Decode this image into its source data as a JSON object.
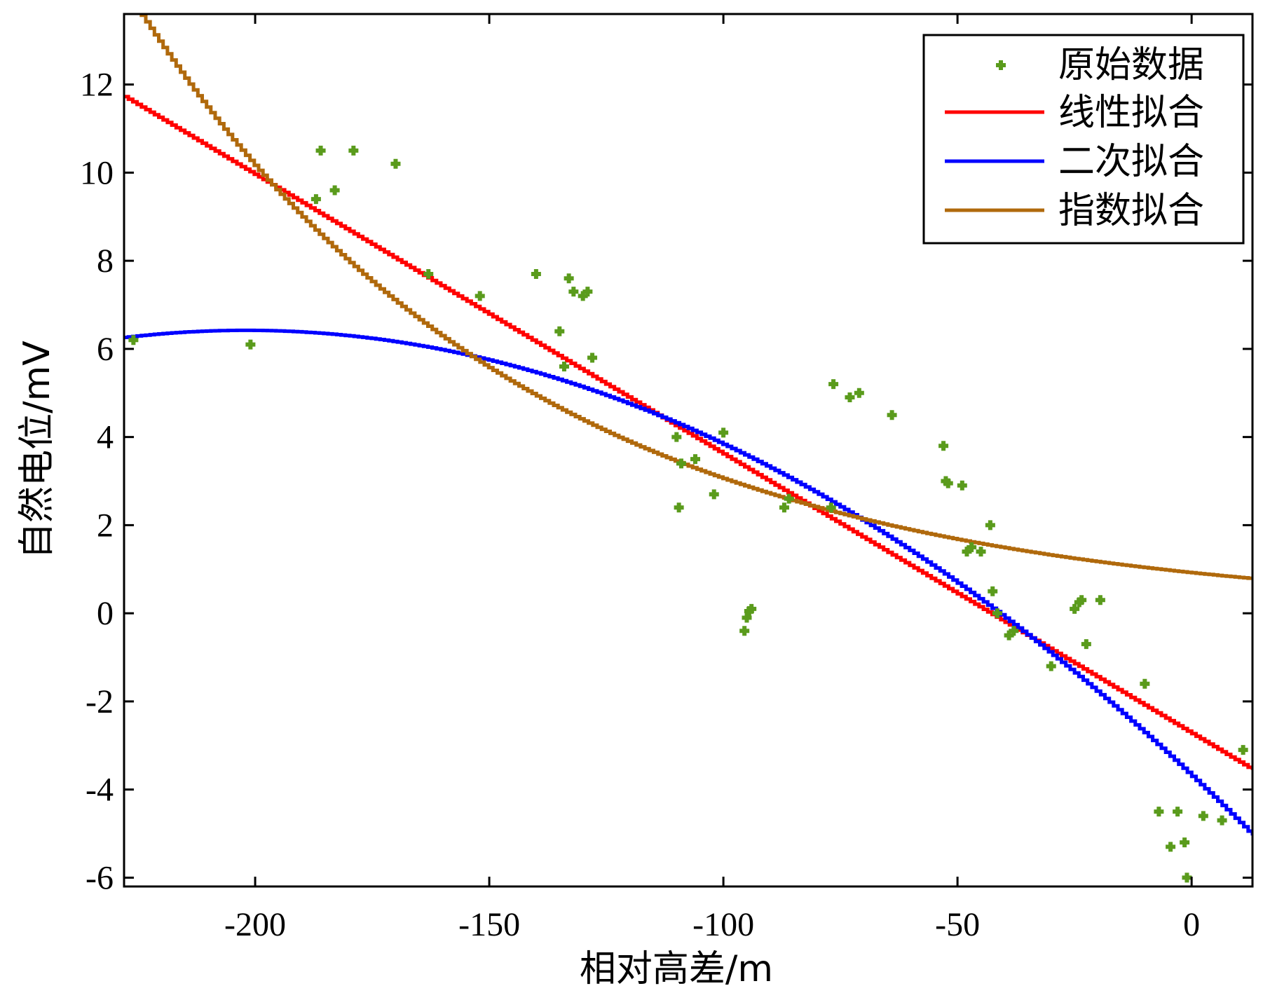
{
  "chart_data": {
    "type": "scatter",
    "title": "",
    "xlabel": "相对高差/m",
    "ylabel": "自然电位/mV",
    "xlim": [
      -228,
      13
    ],
    "ylim": [
      -6.2,
      13.6
    ],
    "xticks": [
      -200,
      -150,
      -100,
      -50,
      0
    ],
    "yticks": [
      -6,
      -4,
      -2,
      0,
      2,
      4,
      6,
      8,
      10,
      12
    ],
    "grid": false,
    "legend_position": "top-right",
    "scatter": {
      "name": "原始数据",
      "color": "#5a9b1c",
      "x": [
        -226,
        -201,
        -187,
        -186,
        -183,
        -179,
        -170,
        -163,
        -152,
        -140,
        -135,
        -134,
        -133,
        -132,
        -130,
        -129,
        -128,
        -110,
        -109.5,
        -109,
        -106,
        -102,
        -100,
        -95.5,
        -95,
        -94.5,
        -94,
        -87,
        -86,
        -77,
        -76.5,
        -73,
        -71,
        -64,
        -53,
        -52.5,
        -52,
        -49,
        -48,
        -47,
        -45,
        -43,
        -42.5,
        -41.5,
        -39,
        -38,
        -30,
        -25,
        -24,
        -23.5,
        -22.5,
        -19.5,
        -10,
        -7,
        -4.5,
        -3,
        -1.5,
        -1,
        2.5,
        6.5,
        11
      ],
      "y": [
        6.2,
        6.1,
        9.4,
        10.5,
        9.6,
        10.5,
        10.2,
        7.7,
        7.2,
        7.7,
        6.4,
        5.6,
        7.6,
        7.3,
        7.2,
        7.3,
        5.8,
        4.0,
        2.4,
        3.4,
        3.5,
        2.7,
        4.1,
        -0.4,
        -0.1,
        0.05,
        0.1,
        2.4,
        2.6,
        2.4,
        5.2,
        4.9,
        5.0,
        4.5,
        3.8,
        3.0,
        2.95,
        2.9,
        1.4,
        1.5,
        1.4,
        2.0,
        0.5,
        0.0,
        -0.5,
        -0.4,
        -1.2,
        0.1,
        0.25,
        0.3,
        -0.7,
        0.3,
        -1.6,
        -4.5,
        -5.3,
        -4.5,
        -5.2,
        -6.0,
        -4.6,
        -4.7,
        -3.1
      ]
    },
    "series": [
      {
        "name": "线性拟合",
        "kind": "linear",
        "color": "#ff0000",
        "a": -2.73,
        "b": -0.0634
      },
      {
        "name": "二次拟合",
        "kind": "quadratic",
        "color": "#0000ff",
        "a": -3.7,
        "b": -0.1,
        "c": -0.000247
      },
      {
        "name": "指数拟合",
        "kind": "exponential",
        "color": "#b0690c",
        "A": 0.92,
        "k": -0.012
      }
    ]
  }
}
